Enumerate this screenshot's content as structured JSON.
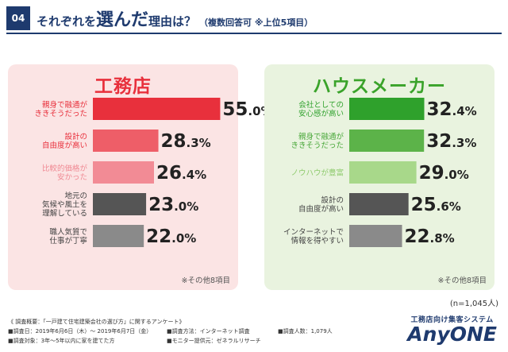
{
  "header": {
    "badge": "04",
    "title_pre": "それぞれを",
    "title_emph": "選んだ",
    "title_post": "理由は？",
    "subtitle": "（複数回答可 ※上位5項目）"
  },
  "chart_data": [
    {
      "type": "bar",
      "orientation": "horizontal",
      "title": "工務店",
      "categories": [
        "親身で融通が\nききそうだった",
        "設計の\n自由度が高い",
        "比較的価格が\n安かった",
        "地元の\n気候や風土を\n理解している",
        "職人気質で\n仕事が丁寧"
      ],
      "values": [
        55.0,
        28.3,
        26.4,
        23.0,
        22.0
      ],
      "unit": "%",
      "colors": [
        "#e8303c",
        "#ee5e68",
        "#f28b95",
        "#555555",
        "#8a8a8a"
      ],
      "label_colors": [
        "#e8303c",
        "#e8303c",
        "#f08a94",
        "#444444",
        "#444444"
      ],
      "xlim": [
        0,
        60
      ],
      "note": "※その他8項目"
    },
    {
      "type": "bar",
      "orientation": "horizontal",
      "title": "ハウスメーカー",
      "categories": [
        "会社としての\n安心感が高い",
        "親身で融通が\nききそうだった",
        "ノウハウが豊富",
        "設計の\n自由度が高い",
        "インターネットで\n情報を得やすい"
      ],
      "values": [
        32.4,
        32.3,
        29.0,
        25.6,
        22.8
      ],
      "unit": "%",
      "colors": [
        "#2fa12c",
        "#5cb349",
        "#a8d88a",
        "#555555",
        "#8a8a8a"
      ],
      "label_colors": [
        "#2fa12c",
        "#4aa83b",
        "#8fcb6e",
        "#444444",
        "#444444"
      ],
      "xlim": [
        0,
        60
      ],
      "note": "※その他8項目"
    }
  ],
  "sample_size": "(n=1,045人)",
  "footer": {
    "line1": "《 調査概要：「一戸建て住宅建築会社の選び方」に関するアンケート》",
    "date": "■調査日：2019年6月6日（木）～ 2019年6月7日（金）",
    "method": "■調査方法：インターネット調査",
    "count": "■調査人数：1,079人",
    "target": "■調査対象：3年～5年以内に家を建てた方",
    "provider": "■モニター提供元：ゼネラルリサーチ"
  },
  "logo": {
    "tagline": "工務店向け集客システム",
    "brand": "AnyONE"
  }
}
